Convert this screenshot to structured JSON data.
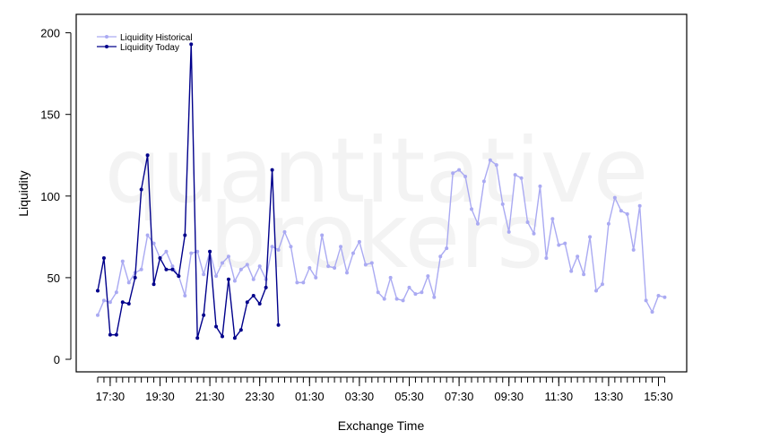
{
  "watermark": {
    "line1": "quantitative",
    "line2": "brokers"
  },
  "colors": {
    "historical": "#aaaaf2",
    "today": "#00008b",
    "axis": "#000000"
  },
  "chart_data": {
    "type": "line",
    "xlabel": "Exchange Time",
    "ylabel": "Liquidity",
    "ylim": [
      0,
      200
    ],
    "yticks": [
      0,
      50,
      100,
      150,
      200
    ],
    "xticks": [
      "17:30",
      "19:30",
      "21:30",
      "23:30",
      "01:30",
      "03:30",
      "05:30",
      "07:30",
      "09:30",
      "11:30",
      "13:30",
      "15:30"
    ],
    "x_times": [
      "17:00",
      "17:15",
      "17:30",
      "17:45",
      "18:00",
      "18:15",
      "18:30",
      "18:45",
      "19:00",
      "19:15",
      "19:30",
      "19:45",
      "20:00",
      "20:15",
      "20:30",
      "20:45",
      "21:00",
      "21:15",
      "21:30",
      "21:45",
      "22:00",
      "22:15",
      "22:30",
      "22:45",
      "23:00",
      "23:15",
      "23:30",
      "23:45",
      "00:00",
      "00:15",
      "00:30",
      "00:45",
      "01:00",
      "01:15",
      "01:30",
      "01:45",
      "02:00",
      "02:15",
      "02:30",
      "02:45",
      "03:00",
      "03:15",
      "03:30",
      "03:45",
      "04:00",
      "04:15",
      "04:30",
      "04:45",
      "05:00",
      "05:15",
      "05:30",
      "05:45",
      "06:00",
      "06:15",
      "06:30",
      "06:45",
      "07:00",
      "07:15",
      "07:30",
      "07:45",
      "08:00",
      "08:15",
      "08:30",
      "08:45",
      "09:00",
      "09:15",
      "09:30",
      "09:45",
      "10:00",
      "10:15",
      "10:30",
      "10:45",
      "11:00",
      "11:15",
      "11:30",
      "11:45",
      "12:00",
      "12:15",
      "12:30",
      "12:45",
      "13:00",
      "13:15",
      "13:30",
      "13:45",
      "14:00",
      "14:15",
      "14:30",
      "14:45",
      "15:00",
      "15:15",
      "15:30",
      "15:45"
    ],
    "legend_position": "top-left",
    "series": [
      {
        "name": "Liquidity Historical",
        "color": "#aaaaf2",
        "values": [
          27,
          36,
          35,
          41,
          60,
          47,
          53,
          55,
          76,
          71,
          62,
          66,
          57,
          51,
          39,
          65,
          66,
          52,
          66,
          51,
          59,
          63,
          48,
          55,
          58,
          49,
          57,
          49,
          69,
          67,
          78,
          69,
          47,
          47,
          56,
          50,
          76,
          57,
          56,
          69,
          53,
          65,
          72,
          58,
          59,
          41,
          37,
          50,
          37,
          36,
          44,
          40,
          41,
          51,
          38,
          63,
          68,
          114,
          116,
          112,
          92,
          83,
          109,
          122,
          119,
          95,
          78,
          113,
          111,
          84,
          77,
          106,
          62,
          86,
          70,
          71,
          54,
          63,
          52,
          75,
          42,
          46,
          83,
          99,
          91,
          89,
          67,
          94,
          36,
          29,
          39,
          38
        ]
      },
      {
        "name": "Liquidity Today",
        "color": "#00008b",
        "values": [
          42,
          62,
          15,
          15,
          35,
          34,
          50,
          104,
          125,
          46,
          62,
          55,
          55,
          51,
          76,
          193,
          13,
          27,
          66,
          20,
          14,
          49,
          13,
          18,
          35,
          39,
          34,
          44,
          116,
          21
        ]
      }
    ]
  }
}
